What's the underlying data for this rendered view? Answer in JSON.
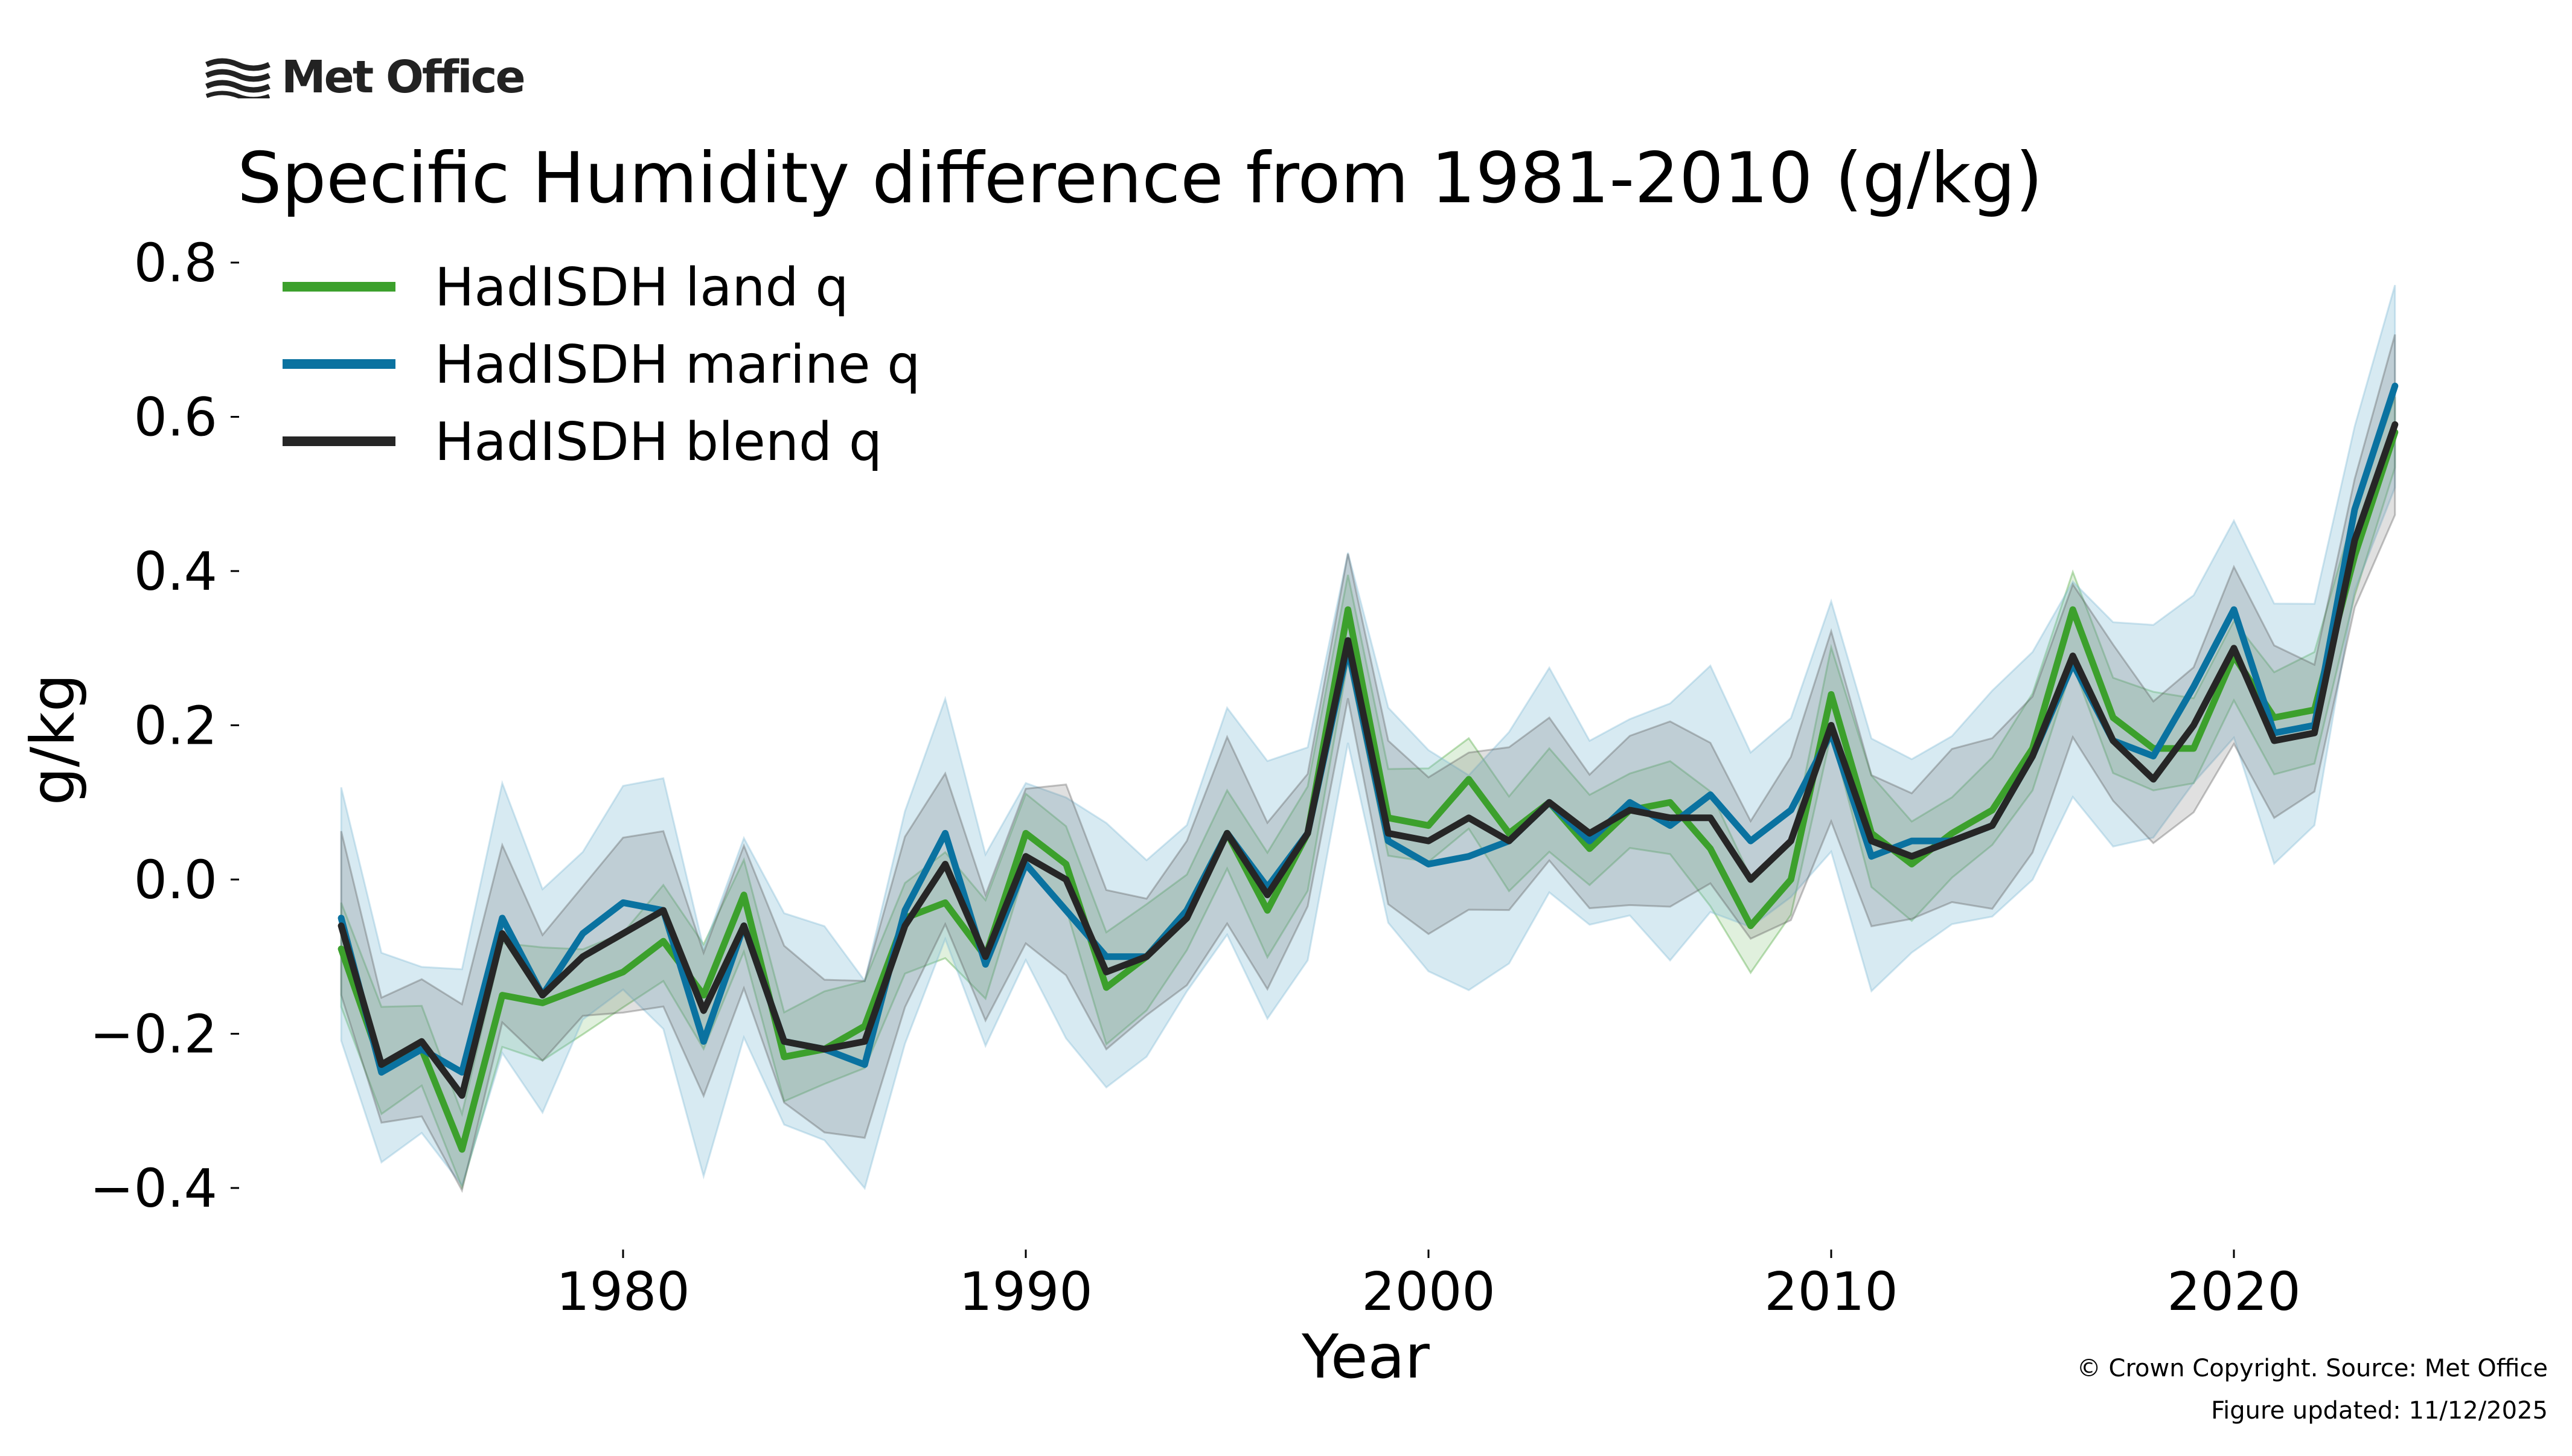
{
  "logo": {
    "name": "Met Office",
    "icon": "met-office-wave-icon"
  },
  "copyright": "© Crown Copyright. Source: Met Office",
  "updated": "Figure updated: 11/12/2025",
  "chart_data": {
    "type": "line",
    "title": "Specific Humidity difference from 1981-2010 (g/kg)",
    "xlabel": "Year",
    "ylabel": "g/kg",
    "xlim": [
      1971,
      2025.5
    ],
    "ylim": [
      -0.48,
      0.82
    ],
    "xticks": [
      1980,
      1990,
      2000,
      2010,
      2020
    ],
    "xtick_labels": [
      "1980",
      "1990",
      "2000",
      "2010",
      "2020"
    ],
    "yticks": [
      -0.4,
      -0.2,
      0.0,
      0.2,
      0.4,
      0.6,
      0.8
    ],
    "ytick_labels": [
      "−0.4",
      "−0.2",
      "0.0",
      "0.2",
      "0.4",
      "0.6",
      "0.8"
    ],
    "grid": false,
    "legend_position": "top-left",
    "x": [
      1973,
      1974,
      1975,
      1976,
      1977,
      1978,
      1979,
      1980,
      1981,
      1982,
      1983,
      1984,
      1985,
      1986,
      1987,
      1988,
      1989,
      1990,
      1991,
      1992,
      1993,
      1994,
      1995,
      1996,
      1997,
      1998,
      1999,
      2000,
      2001,
      2002,
      2003,
      2004,
      2005,
      2006,
      2007,
      2008,
      2009,
      2010,
      2011,
      2012,
      2013,
      2014,
      2015,
      2016,
      2017,
      2018,
      2019,
      2020,
      2021,
      2022,
      2023,
      2024
    ],
    "series": [
      {
        "name": "HadISDH land q",
        "color": "#3ca02c",
        "band_color": "#3ca02c",
        "band_opacity": 0.16,
        "values": [
          -0.09,
          -0.24,
          -0.22,
          -0.35,
          -0.15,
          -0.16,
          -0.14,
          -0.12,
          -0.08,
          -0.15,
          -0.02,
          -0.23,
          -0.22,
          -0.19,
          -0.05,
          -0.03,
          -0.1,
          0.06,
          0.02,
          -0.14,
          -0.1,
          -0.04,
          0.06,
          -0.04,
          0.06,
          0.35,
          0.08,
          0.07,
          0.13,
          0.06,
          0.1,
          0.04,
          0.09,
          0.1,
          0.04,
          -0.06,
          0.0,
          0.24,
          0.06,
          0.02,
          0.06,
          0.09,
          0.17,
          0.35,
          0.21,
          0.17,
          0.17,
          0.29,
          0.21,
          0.22,
          0.42,
          0.58
        ],
        "band": 0.06
      },
      {
        "name": "HadISDH marine q",
        "color": "#0a72a0",
        "band_color": "#7bb8d4",
        "band_opacity": 0.3,
        "values": [
          -0.05,
          -0.25,
          -0.22,
          -0.25,
          -0.05,
          -0.15,
          -0.07,
          -0.03,
          -0.04,
          -0.21,
          -0.06,
          -0.21,
          -0.22,
          -0.24,
          -0.04,
          0.06,
          -0.11,
          0.02,
          -0.04,
          -0.1,
          -0.1,
          -0.04,
          0.06,
          -0.01,
          0.06,
          0.3,
          0.05,
          0.02,
          0.03,
          0.05,
          0.1,
          0.05,
          0.1,
          0.07,
          0.11,
          0.05,
          0.09,
          0.19,
          0.03,
          0.05,
          0.05,
          0.07,
          0.16,
          0.28,
          0.18,
          0.16,
          0.25,
          0.35,
          0.19,
          0.2,
          0.48,
          0.64
        ],
        "band": 0.14
      },
      {
        "name": "HadISDH blend q",
        "color": "#262626",
        "band_color": "#555555",
        "band_opacity": 0.18,
        "values": [
          -0.06,
          -0.24,
          -0.21,
          -0.28,
          -0.07,
          -0.15,
          -0.1,
          -0.07,
          -0.04,
          -0.17,
          -0.06,
          -0.21,
          -0.22,
          -0.21,
          -0.06,
          0.02,
          -0.1,
          0.03,
          0.0,
          -0.12,
          -0.1,
          -0.05,
          0.06,
          -0.02,
          0.06,
          0.31,
          0.06,
          0.05,
          0.08,
          0.05,
          0.1,
          0.06,
          0.09,
          0.08,
          0.08,
          0.0,
          0.05,
          0.2,
          0.05,
          0.03,
          0.05,
          0.07,
          0.16,
          0.29,
          0.18,
          0.13,
          0.2,
          0.3,
          0.18,
          0.19,
          0.44,
          0.59
        ],
        "band": 0.1
      }
    ]
  }
}
